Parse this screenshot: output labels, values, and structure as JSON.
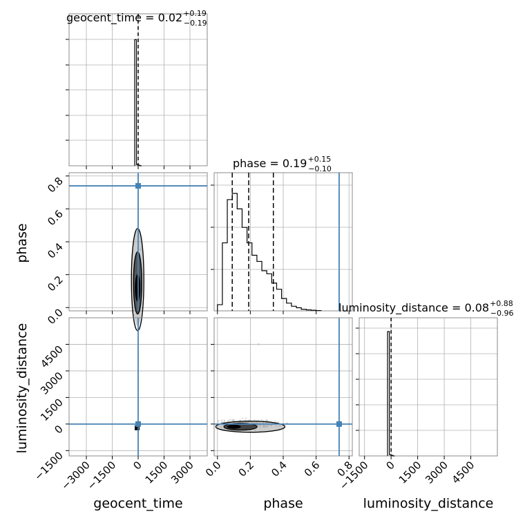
{
  "chart_data": {
    "type": "corner",
    "parameters": [
      "geocent_time",
      "phase",
      "luminosity_distance"
    ],
    "titles": {
      "geocent_time": {
        "name": "geocent_time",
        "median": "0.02",
        "upper": "+0.19",
        "lower": "−0.19"
      },
      "phase": {
        "name": "phase",
        "median": "0.19",
        "upper": "+0.15",
        "lower": "−0.10"
      },
      "luminosity_distance": {
        "name": "luminosity_distance",
        "median": "0.08",
        "upper": "+0.88",
        "lower": "−0.96"
      }
    },
    "axes": {
      "geocent_time": {
        "range": [
          -4000,
          4000
        ],
        "ticks": [
          -3000,
          -1500,
          0,
          1500,
          3000
        ],
        "tick_labels": [
          "−3000",
          "−1500",
          "0",
          "1500",
          "3000"
        ],
        "xlabel": "geocent_time"
      },
      "phase": {
        "range": [
          -0.02,
          0.82
        ],
        "ticks": [
          0.0,
          0.2,
          0.4,
          0.6,
          0.8
        ],
        "tick_labels": [
          "0.0",
          "0.2",
          "0.4",
          "0.6",
          "0.8"
        ],
        "label": "phase"
      },
      "luminosity_distance": {
        "range": [
          -1800,
          6000
        ],
        "ticks_x": [
          -1500,
          0,
          1500,
          3000,
          4500
        ],
        "tick_labels_x": [
          "−1500",
          "0",
          "1500",
          "3000",
          "4500"
        ],
        "ticks_y": [
          -1500,
          0,
          1500,
          3000,
          4500
        ],
        "tick_labels_y": [
          "−1500",
          "0",
          "1500",
          "3000",
          "4500"
        ],
        "label": "luminosity_distance"
      }
    },
    "injection": {
      "geocent_time": 0,
      "phase": 0.74,
      "luminosity_distance": 0
    },
    "quantiles": {
      "geocent_time": [
        -0.17,
        0.02,
        0.21
      ],
      "phase": [
        0.09,
        0.19,
        0.34
      ],
      "luminosity_distance": [
        -0.88,
        0.08,
        0.96
      ]
    },
    "histograms": {
      "geocent_time": {
        "bins": [
          -200,
          -100,
          0,
          100,
          200
        ],
        "counts": [
          0.99,
          0.01,
          0.005,
          0.0
        ]
      },
      "phase": {
        "bins": [
          0.0,
          0.03,
          0.06,
          0.09,
          0.12,
          0.15,
          0.18,
          0.21,
          0.24,
          0.27,
          0.3,
          0.33,
          0.36,
          0.39,
          0.42,
          0.45,
          0.48,
          0.51,
          0.54,
          0.57,
          0.6,
          0.63
        ],
        "counts": [
          0.02,
          0.22,
          0.36,
          0.38,
          0.33,
          0.27,
          0.22,
          0.18,
          0.16,
          0.13,
          0.12,
          0.09,
          0.07,
          0.04,
          0.025,
          0.015,
          0.01,
          0.005,
          0.003,
          0.002,
          0.001
        ]
      },
      "luminosity_distance": {
        "bins": [
          -200,
          -100,
          0,
          100,
          200
        ],
        "counts": [
          0.99,
          0.01,
          0.005,
          0.0
        ]
      }
    },
    "colors": {
      "injection": "#4682b4",
      "hist": "#000000",
      "grid": "#b0b0b0",
      "scatter": "#c0c0c0"
    }
  }
}
